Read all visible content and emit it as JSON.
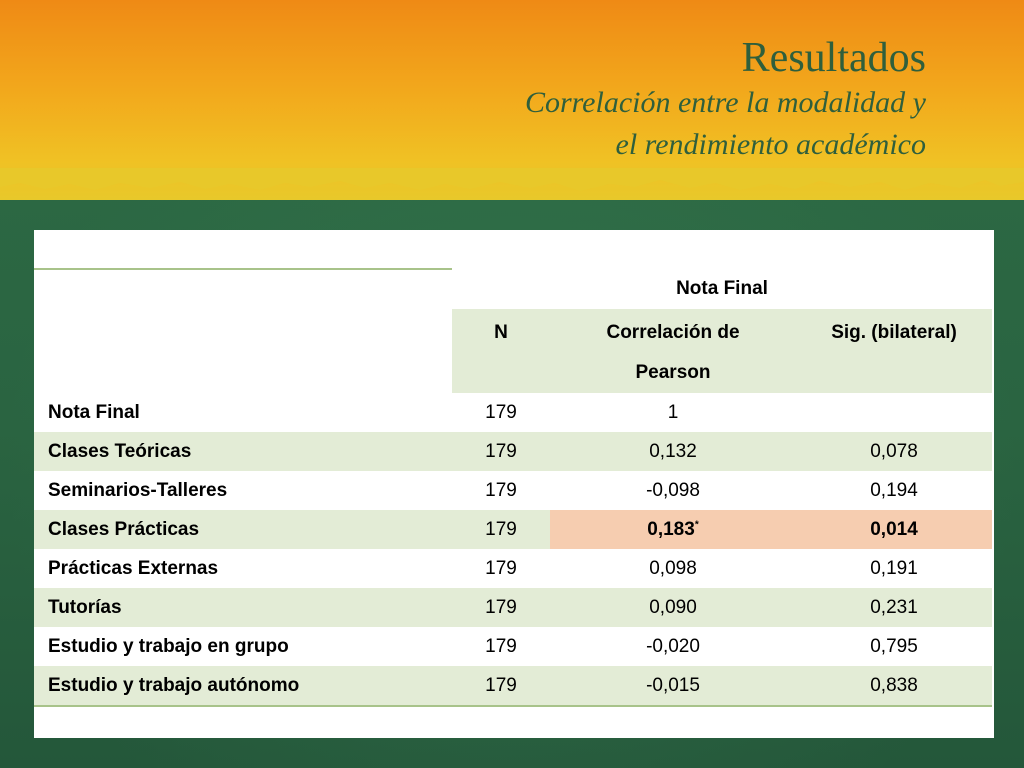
{
  "slide": {
    "title": "Resultados",
    "subtitle_line1": "Correlación entre la modalidad y",
    "subtitle_line2": "el rendimiento académico"
  },
  "table": {
    "group_header": "Nota Final",
    "col_n": "N",
    "col_pearson_line1": "Correlación de",
    "col_pearson_line2": "Pearson",
    "col_sig": "Sig. (bilateral)",
    "rows": [
      {
        "label": "Nota Final",
        "n": "179",
        "pearson": "1",
        "sig": ""
      },
      {
        "label": "Clases Teóricas",
        "n": "179",
        "pearson": "0,132",
        "sig": "0,078"
      },
      {
        "label": "Seminarios-Talleres",
        "n": "179",
        "pearson": "-0,098",
        "sig": "0,194"
      },
      {
        "label": "Clases Prácticas",
        "n": "179",
        "pearson": "0,183",
        "pearson_mark": "*",
        "sig": "0,014"
      },
      {
        "label": "Prácticas Externas",
        "n": "179",
        "pearson": "0,098",
        "sig": "0,191"
      },
      {
        "label": "Tutorías",
        "n": "179",
        "pearson": "0,090",
        "sig": "0,231"
      },
      {
        "label": "Estudio y trabajo en grupo",
        "n": "179",
        "pearson": "-0,020",
        "sig": "0,795"
      },
      {
        "label": "Estudio y trabajo autónomo",
        "n": "179",
        "pearson": "-0,015",
        "sig": "0,838"
      }
    ]
  },
  "colors": {
    "header_orange": "#ef8a15",
    "header_yellow": "#f0c124",
    "background_green": "#2d6b45",
    "title_green": "#2f5f3c",
    "row_shade": "#e3ecd6",
    "highlight": "#f6cdb0"
  }
}
